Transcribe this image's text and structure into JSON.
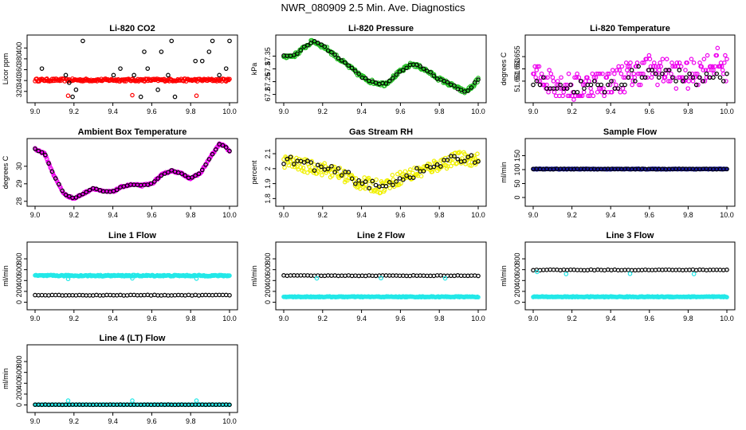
{
  "page_title": "NWR_080909  2.5 Min. Ave. Diagnostics",
  "chart_data": [
    {
      "id": "co2",
      "type": "scatter",
      "title": "Li-820 CO2",
      "ylabel": "Licor ppm",
      "xlim": [
        9.0,
        10.0
      ],
      "ylim": [
        305,
        418
      ],
      "xticks": [
        9.0,
        9.2,
        9.4,
        9.6,
        9.8,
        10.0
      ],
      "yticks": [
        320,
        340,
        360,
        380,
        400
      ],
      "series": [
        {
          "name": "raw",
          "color": "#ff0000",
          "pattern": "flat",
          "value": 341,
          "noise": 2.5,
          "ring": false
        },
        {
          "name": "avg",
          "color": "#000000",
          "pattern": "discrete",
          "levels": [
            310,
            323,
            336,
            350,
            362,
            376,
            393,
            413
          ],
          "ring": true
        },
        {
          "name": "outlier",
          "color": "#ff0000",
          "points": [
            [
              9.17,
              312
            ],
            [
              9.5,
              313
            ],
            [
              9.83,
              312
            ]
          ],
          "ring": true
        }
      ]
    },
    {
      "id": "pressure",
      "type": "scatter",
      "title": "Li-820 Pressure",
      "ylabel": "kPa",
      "xlim": [
        9.0,
        10.0
      ],
      "ylim": [
        67.18,
        67.42
      ],
      "xticks": [
        9.0,
        9.2,
        9.4,
        9.6,
        9.8,
        10.0
      ],
      "yticks": [
        67.2,
        67.25,
        67.3,
        67.35
      ],
      "series": [
        {
          "name": "raw",
          "color": "#22c022",
          "curve": [
            [
              9.0,
              67.35
            ],
            [
              9.05,
              67.35
            ],
            [
              9.1,
              67.38
            ],
            [
              9.15,
              67.41
            ],
            [
              9.22,
              67.38
            ],
            [
              9.3,
              67.33
            ],
            [
              9.4,
              67.27
            ],
            [
              9.45,
              67.25
            ],
            [
              9.52,
              67.24
            ],
            [
              9.6,
              67.29
            ],
            [
              9.66,
              67.32
            ],
            [
              9.72,
              67.3
            ],
            [
              9.8,
              67.26
            ],
            [
              9.88,
              67.23
            ],
            [
              9.93,
              67.21
            ],
            [
              9.97,
              67.23
            ],
            [
              10.0,
              67.26
            ]
          ],
          "noise": 0.008,
          "ring": true
        },
        {
          "name": "avg",
          "color": "#000000",
          "same_as": "raw",
          "ring": true
        }
      ]
    },
    {
      "id": "temp",
      "type": "scatter",
      "title": "Li-820 Temperature",
      "ylabel": "degrees C",
      "xlim": [
        9.0,
        10.0
      ],
      "ylim": [
        51.648,
        51.658
      ],
      "xticks": [
        9.0,
        9.2,
        9.4,
        9.6,
        9.8,
        10.0
      ],
      "yticks": [
        51.651,
        51.653,
        51.655
      ],
      "series": [
        {
          "name": "raw",
          "color": "#ee00ee",
          "pattern": "discrete_band",
          "curve": [
            [
              9.0,
              51.652
            ],
            [
              9.2,
              51.65
            ],
            [
              9.4,
              51.651
            ],
            [
              9.6,
              51.653
            ],
            [
              9.8,
              51.652
            ],
            [
              9.95,
              51.654
            ],
            [
              10.0,
              51.653
            ]
          ],
          "spread": 0.0023,
          "ring": true
        },
        {
          "name": "avg",
          "color": "#000000",
          "pattern": "discrete_band",
          "curve": [
            [
              9.0,
              51.651
            ],
            [
              9.2,
              51.65
            ],
            [
              9.4,
              51.65
            ],
            [
              9.6,
              51.653
            ],
            [
              9.8,
              51.651
            ],
            [
              10.0,
              51.652
            ]
          ],
          "spread": 0.0012,
          "ring": true
        }
      ]
    },
    {
      "id": "ambient",
      "type": "scatter",
      "title": "Ambient Box Temperature",
      "ylabel": "degrees C",
      "xlim": [
        9.0,
        10.0
      ],
      "ylim": [
        27.9,
        31.4
      ],
      "xticks": [
        9.0,
        9.2,
        9.4,
        9.6,
        9.8,
        10.0
      ],
      "yticks": [
        28.0,
        29.0,
        30.0
      ],
      "series": [
        {
          "name": "raw",
          "color": "#ee00ee",
          "curve": [
            [
              9.0,
              31.0
            ],
            [
              9.05,
              30.7
            ],
            [
              9.1,
              29.4
            ],
            [
              9.15,
              28.4
            ],
            [
              9.2,
              28.15
            ],
            [
              9.25,
              28.45
            ],
            [
              9.3,
              28.75
            ],
            [
              9.35,
              28.55
            ],
            [
              9.4,
              28.55
            ],
            [
              9.45,
              28.85
            ],
            [
              9.5,
              28.95
            ],
            [
              9.55,
              28.9
            ],
            [
              9.6,
              29.0
            ],
            [
              9.65,
              29.5
            ],
            [
              9.7,
              29.75
            ],
            [
              9.75,
              29.6
            ],
            [
              9.8,
              29.3
            ],
            [
              9.85,
              29.6
            ],
            [
              9.9,
              30.5
            ],
            [
              9.95,
              31.3
            ],
            [
              9.98,
              31.1
            ],
            [
              10.0,
              30.85
            ]
          ],
          "noise": 0.05,
          "ring": true
        },
        {
          "name": "avg",
          "color": "#000000",
          "same_as": "raw",
          "ring": true
        }
      ]
    },
    {
      "id": "rh",
      "type": "scatter",
      "title": "Gas Stream RH",
      "ylabel": "percent",
      "xlim": [
        9.0,
        10.0
      ],
      "ylim": [
        1.77,
        2.18
      ],
      "xticks": [
        9.0,
        9.2,
        9.4,
        9.6,
        9.8,
        10.0
      ],
      "yticks": [
        1.8,
        1.9,
        2.0,
        2.1
      ],
      "series": [
        {
          "name": "raw",
          "color": "#f0f000",
          "curve": [
            [
              9.0,
              2.05
            ],
            [
              9.1,
              2.02
            ],
            [
              9.2,
              2.0
            ],
            [
              9.3,
              1.96
            ],
            [
              9.4,
              1.9
            ],
            [
              9.5,
              1.88
            ],
            [
              9.6,
              1.94
            ],
            [
              9.7,
              1.98
            ],
            [
              9.8,
              2.03
            ],
            [
              9.9,
              2.07
            ],
            [
              10.0,
              2.06
            ]
          ],
          "noise": 0.045,
          "ring": true
        },
        {
          "name": "avg",
          "color": "#000000",
          "curve": [
            [
              9.0,
              2.06
            ],
            [
              9.1,
              2.04
            ],
            [
              9.2,
              2.0
            ],
            [
              9.3,
              1.97
            ],
            [
              9.4,
              1.91
            ],
            [
              9.5,
              1.87
            ],
            [
              9.6,
              1.94
            ],
            [
              9.7,
              1.98
            ],
            [
              9.8,
              2.03
            ],
            [
              9.9,
              2.07
            ],
            [
              10.0,
              2.07
            ]
          ],
          "noise": 0.03,
          "ring": true
        }
      ]
    },
    {
      "id": "sample",
      "type": "scatter",
      "title": "Sample Flow",
      "ylabel": "ml/min",
      "xlim": [
        9.0,
        10.0
      ],
      "ylim": [
        -20,
        200
      ],
      "xticks": [
        9.0,
        9.2,
        9.4,
        9.6,
        9.8,
        10.0
      ],
      "yticks": [
        0,
        50,
        100,
        150
      ],
      "series": [
        {
          "name": "raw",
          "color": "#1a1aa0",
          "pattern": "flat",
          "value": 102,
          "noise": 1.2,
          "ring": true
        },
        {
          "name": "avg",
          "color": "#000000",
          "pattern": "flat",
          "value": 102,
          "noise": 0.8,
          "ring": true
        }
      ]
    },
    {
      "id": "line1",
      "type": "scatter",
      "title": "Line 1 Flow",
      "ylabel": "ml/min",
      "xlim": [
        9.0,
        10.0
      ],
      "ylim": [
        -80,
        1050
      ],
      "xticks": [
        9.0,
        9.2,
        9.4,
        9.6,
        9.8,
        10.0
      ],
      "yticks": [
        0,
        200,
        400,
        600,
        800
      ],
      "series": [
        {
          "name": "raw",
          "color": "#22e8e8",
          "pattern": "flat",
          "value": 490,
          "noise": 12,
          "ring": true
        },
        {
          "name": "avg",
          "color": "#000000",
          "pattern": "flat",
          "value": 130,
          "noise": 5,
          "ring": true
        },
        {
          "name": "outlier",
          "color": "#22e8e8",
          "points": [
            [
              9.17,
              430
            ],
            [
              9.5,
              440
            ],
            [
              9.83,
              435
            ]
          ],
          "ring": true
        }
      ]
    },
    {
      "id": "line2",
      "type": "scatter",
      "title": "Line 2 Flow",
      "ylabel": "ml/min",
      "xlim": [
        9.0,
        10.0
      ],
      "ylim": [
        -80,
        1050
      ],
      "xticks": [
        9.0,
        9.2,
        9.4,
        9.6,
        9.8,
        10.0
      ],
      "yticks": [
        0,
        200,
        400,
        600,
        800
      ],
      "series": [
        {
          "name": "raw",
          "color": "#22e8e8",
          "pattern": "flat",
          "value": 100,
          "noise": 8,
          "ring": true
        },
        {
          "name": "avg",
          "color": "#000000",
          "pattern": "flat",
          "value": 490,
          "noise": 5,
          "ring": true
        },
        {
          "name": "outlier",
          "color": "#22e8e8",
          "points": [
            [
              9.17,
              440
            ],
            [
              9.5,
              445
            ],
            [
              9.83,
              440
            ]
          ],
          "ring": true
        }
      ]
    },
    {
      "id": "line3",
      "type": "scatter",
      "title": "Line 3 Flow",
      "ylabel": "ml/min",
      "xlim": [
        9.0,
        10.0
      ],
      "ylim": [
        -80,
        1050
      ],
      "xticks": [
        9.0,
        9.2,
        9.4,
        9.6,
        9.8,
        10.0
      ],
      "yticks": [
        0,
        200,
        400,
        600,
        800
      ],
      "series": [
        {
          "name": "raw",
          "color": "#22e8e8",
          "pattern": "flat",
          "value": 100,
          "noise": 8,
          "ring": true
        },
        {
          "name": "avg",
          "color": "#000000",
          "pattern": "flat",
          "value": 595,
          "noise": 6,
          "ring": true
        },
        {
          "name": "outlier",
          "color": "#22e8e8",
          "points": [
            [
              9.02,
              560
            ],
            [
              9.17,
              520
            ],
            [
              9.5,
              525
            ],
            [
              9.83,
              520
            ]
          ],
          "ring": true
        }
      ]
    },
    {
      "id": "line4",
      "type": "scatter",
      "title": "Line 4 (LT) Flow",
      "ylabel": "ml/min",
      "xlim": [
        9.0,
        10.0
      ],
      "ylim": [
        -80,
        1050
      ],
      "xticks": [
        9.0,
        9.2,
        9.4,
        9.6,
        9.8,
        10.0
      ],
      "yticks": [
        0,
        200,
        400,
        600,
        800
      ],
      "series": [
        {
          "name": "raw",
          "color": "#22e8e8",
          "pattern": "flat",
          "value": 5,
          "noise": 2,
          "ring": true
        },
        {
          "name": "avg",
          "color": "#000000",
          "pattern": "flat",
          "value": 5,
          "noise": 2,
          "ring": true
        },
        {
          "name": "outlier",
          "color": "#22e8e8",
          "points": [
            [
              9.17,
              80
            ],
            [
              9.5,
              80
            ],
            [
              9.83,
              80
            ]
          ],
          "ring": true
        }
      ]
    }
  ]
}
